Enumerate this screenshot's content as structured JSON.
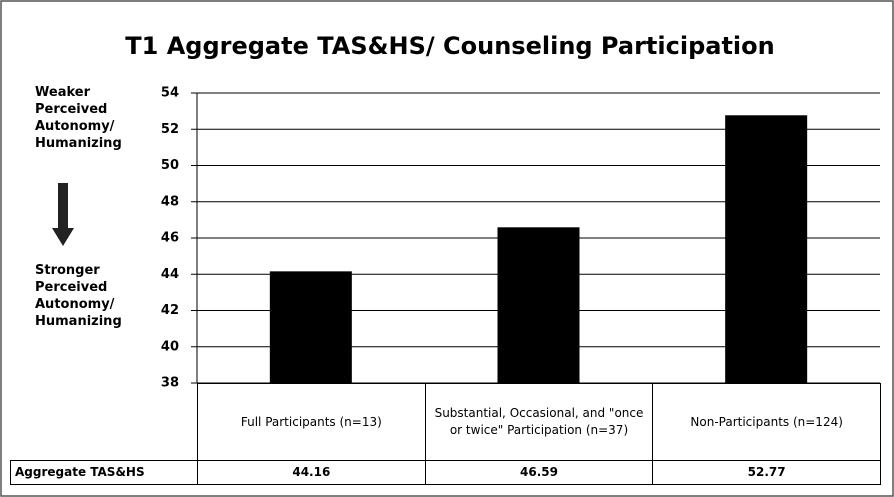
{
  "chart_data": {
    "type": "bar",
    "title": "T1 Aggregate TAS&HS/ Counseling Participation",
    "annotations": [
      "Weaker Perceived Autonomy/ Humanizing",
      "Stronger Perceived Autonomy/ Humanizing"
    ],
    "categories": [
      "Full Participants (n=13)",
      "Substantial, Occasional, and \"once or twice\" Participation (n=37)",
      "Non-Participants (n=124)"
    ],
    "series": [
      {
        "name": "Aggregate TAS&HS",
        "color": "#000000",
        "values": [
          44.16,
          46.59,
          52.77
        ]
      }
    ],
    "ylim": [
      38,
      54
    ],
    "yticks": [
      38,
      40,
      42,
      44,
      46,
      48,
      50,
      52,
      54
    ],
    "grid": true
  }
}
